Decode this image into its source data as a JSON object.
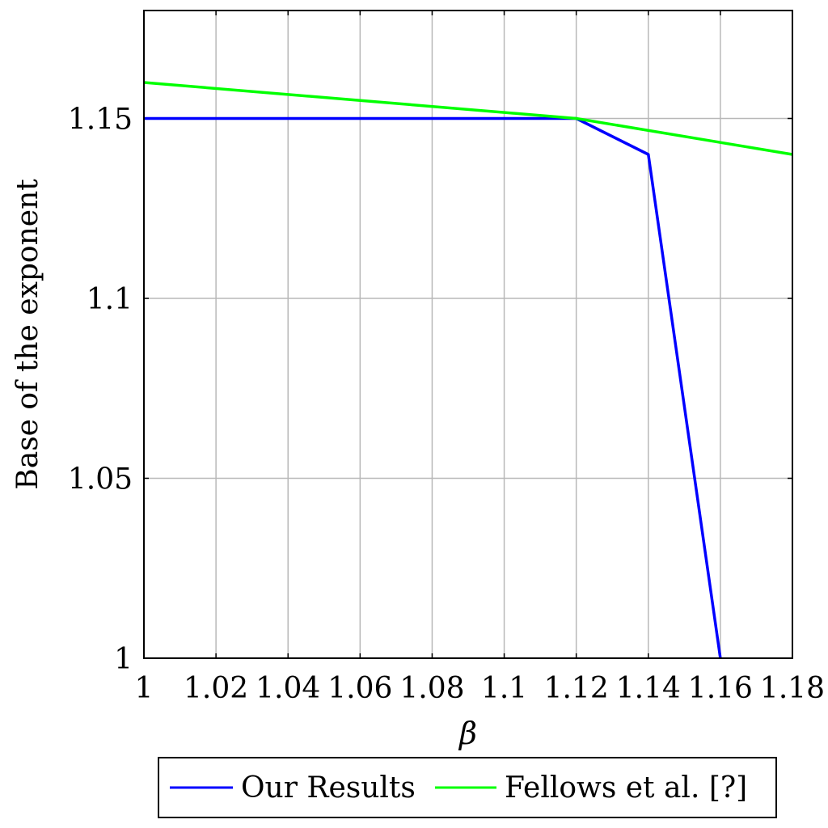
{
  "chart_data": {
    "type": "line",
    "title": "",
    "xlabel": "β",
    "ylabel": "Base of the exponent",
    "xlim": [
      1,
      1.18
    ],
    "ylim": [
      1,
      1.18
    ],
    "grid": true,
    "legend_position": "bottom",
    "xticks": [
      1,
      1.02,
      1.04,
      1.06,
      1.08,
      1.1,
      1.12,
      1.14,
      1.16,
      1.18
    ],
    "xtick_labels": [
      "1",
      "1.02",
      "1.04",
      "1.06",
      "1.08",
      "1.1",
      "1.12",
      "1.14",
      "1.16",
      "1.18"
    ],
    "yticks": [
      1,
      1.05,
      1.1,
      1.15
    ],
    "ytick_labels": [
      "1",
      "1.05",
      "1.1",
      "1.15"
    ],
    "series": [
      {
        "name": "Our Results",
        "color": "#0000ff",
        "x": [
          1,
          1.12,
          1.14,
          1.16
        ],
        "y": [
          1.15,
          1.15,
          1.14,
          1.0
        ]
      },
      {
        "name": "Fellows et al. [?]",
        "color": "#00ff00",
        "x": [
          1,
          1.12,
          1.18
        ],
        "y": [
          1.16,
          1.15,
          1.14
        ]
      }
    ]
  }
}
